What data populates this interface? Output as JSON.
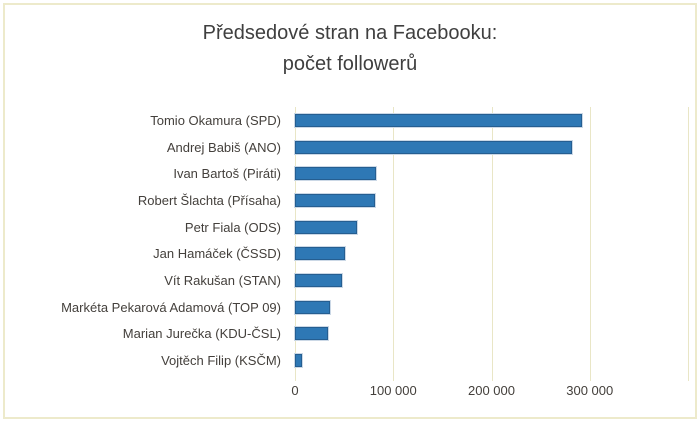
{
  "chart": {
    "title_line1": "Předsedové stran na Facebooku:",
    "title_line2": "počet followerů"
  },
  "chart_data": {
    "type": "bar",
    "orientation": "horizontal",
    "title": "Předsedové stran na Facebooku: počet followerů",
    "xlabel": "",
    "ylabel": "",
    "categories": [
      "Tomio Okamura (SPD)",
      "Andrej Babiš (ANO)",
      "Ivan Bartoš (Piráti)",
      "Robert Šlachta (Přísaha)",
      "Petr Fiala (ODS)",
      "Jan Hamáček (ČSSD)",
      "Vít Rakušan (STAN)",
      "Markéta Pekarová Adamová (TOP 09)",
      "Marian Jurečka (KDU-ČSL)",
      "Vojtěch Filip (KSČM)"
    ],
    "values": [
      290000,
      280000,
      80000,
      79000,
      61000,
      49000,
      46000,
      34000,
      32000,
      5000
    ],
    "xlim": [
      0,
      400000
    ],
    "x_tick_labels": [
      "0",
      "100 000",
      "200 000",
      "300 000"
    ],
    "x_tick_values": [
      0,
      100000,
      200000,
      300000
    ],
    "grid": true,
    "legend": false,
    "colors": {
      "bar_fill": "#2E78B5",
      "bar_border": "#255E91",
      "bar_halo": "#CBD8E6",
      "gridline": "#E9E6C6",
      "frame_border": "#EDEACB",
      "label_text": "#44403C",
      "title_text": "#3F3F3F",
      "background": "#FFFFFF"
    }
  }
}
